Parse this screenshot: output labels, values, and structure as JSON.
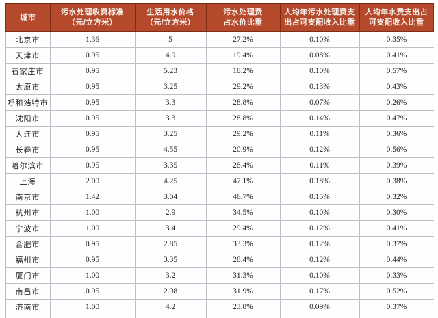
{
  "colors": {
    "header_background": "#b5492c",
    "header_border": "#7e2c15",
    "header_text": "#f7efe9",
    "body_border": "#b9bfc7",
    "body_text": "#1f1f1f"
  },
  "table": {
    "columns": [
      {
        "key": "city",
        "label": "城市",
        "lines": [
          "城市"
        ]
      },
      {
        "key": "sewage-fee-standard",
        "label": "污水处理收费标准（元/立方米）",
        "lines": [
          "污水处理收费标准",
          "（元/立方米）"
        ]
      },
      {
        "key": "water-price",
        "label": "生活用水价格（元/立方米）",
        "lines": [
          "生活用水价格",
          "（元/立方米）"
        ]
      },
      {
        "key": "fee-share-of-water-price",
        "label": "污水处理费占水价比重",
        "lines": [
          "污水处理费",
          "占水价比重"
        ]
      },
      {
        "key": "sewage-expense-share-of-income",
        "label": "人均年污水处理费支出占可支配收入比重",
        "lines": [
          "人均年污水处理费支",
          "出占可支配收入比重"
        ]
      },
      {
        "key": "water-expense-share-of-income",
        "label": "人均年水费支出占可支配收入比重",
        "lines": [
          "人均年水费支出占",
          "可支配收入比重"
        ]
      }
    ],
    "rows": [
      [
        "北京市",
        "1.36",
        "5",
        "27.2%",
        "0.10%",
        "0.35%"
      ],
      [
        "天津市",
        "0.95",
        "4.9",
        "19.4%",
        "0.08%",
        "0.41%"
      ],
      [
        "石家庄市",
        "0.95",
        "5.23",
        "18.2%",
        "0.10%",
        "0.57%"
      ],
      [
        "太原市",
        "0.95",
        "3.25",
        "29.2%",
        "0.13%",
        "0.43%"
      ],
      [
        "呼和浩特市",
        "0.95",
        "3.3",
        "28.8%",
        "0.07%",
        "0.26%"
      ],
      [
        "沈阳市",
        "0.95",
        "3.3",
        "28.8%",
        "0.14%",
        "0.47%"
      ],
      [
        "大连市",
        "0.95",
        "3.25",
        "29.2%",
        "0.11%",
        "0.36%"
      ],
      [
        "长春市",
        "0.95",
        "4.55",
        "20.9%",
        "0.12%",
        "0.56%"
      ],
      [
        "哈尔滨市",
        "0.95",
        "3.35",
        "28.4%",
        "0.11%",
        "0.39%"
      ],
      [
        "上海",
        "2.00",
        "4.25",
        "47.1%",
        "0.18%",
        "0.38%"
      ],
      [
        "南京市",
        "1.42",
        "3.04",
        "46.7%",
        "0.15%",
        "0.32%"
      ],
      [
        "杭州市",
        "1.00",
        "2.9",
        "34.5%",
        "0.10%",
        "0.30%"
      ],
      [
        "宁波市",
        "1.00",
        "3.4",
        "29.4%",
        "0.12%",
        "0.41%"
      ],
      [
        "合肥市",
        "0.95",
        "2.85",
        "33.3%",
        "0.12%",
        "0.37%"
      ],
      [
        "福州市",
        "0.95",
        "3.35",
        "28.4%",
        "0.12%",
        "0.44%"
      ],
      [
        "厦门市",
        "1.00",
        "3.2",
        "31.3%",
        "0.10%",
        "0.33%"
      ],
      [
        "南昌市",
        "0.95",
        "2.98",
        "31.9%",
        "0.17%",
        "0.52%"
      ],
      [
        "济南市",
        "1.00",
        "4.2",
        "23.8%",
        "0.09%",
        "0.37%"
      ]
    ]
  }
}
